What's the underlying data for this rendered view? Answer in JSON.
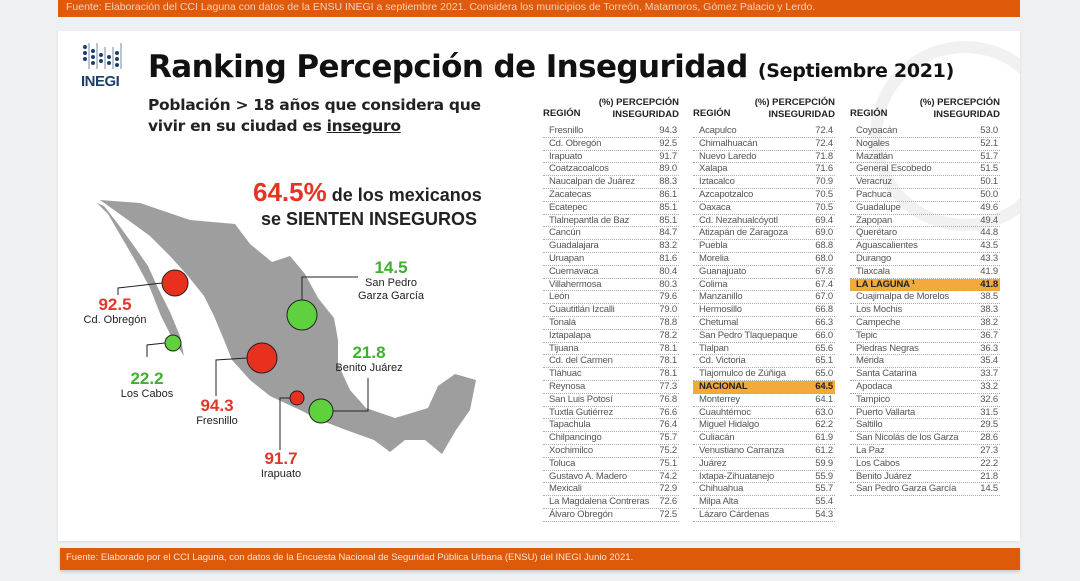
{
  "top_note": "Fuente: Elaboración del CCI Laguna con datos de la ENSU INEGI a septiembre 2021. Considera los municipios de Torreón, Matamoros, Gómez Palacio y Lerdo.",
  "logo": "INEGI",
  "title": "Ranking Percepción de Inseguridad",
  "title_sub": "(Septiembre 2021)",
  "subtitle_line1": "Población > 18 años que considera que",
  "subtitle_line2": "vivir en su ciudad es ",
  "subtitle_emph": "inseguro",
  "headline": {
    "pct": "64.5%",
    "text1": " de los mexicanos",
    "text2": "se SIENTEN INSEGUROS"
  },
  "colors": {
    "orange": "#e05a0c",
    "red": "#e0382a",
    "green": "#5fd13e",
    "highlight": "#f3a93c",
    "map": "#9e9e9e"
  },
  "map_markers": [
    {
      "value": "92.5",
      "city": "Cd. Obregón",
      "status": "red"
    },
    {
      "value": "22.2",
      "city": "Los Cabos",
      "status": "green"
    },
    {
      "value": "94.3",
      "city": "Fresnillo",
      "status": "red"
    },
    {
      "value": "91.7",
      "city": "Irapuato",
      "status": "red"
    },
    {
      "value": "21.8",
      "city": "Benito Juárez",
      "status": "green"
    },
    {
      "value": "14.5",
      "city": "San Pedro",
      "city2": "Garza García",
      "status": "green"
    }
  ],
  "table_headers": {
    "region": "REGIÓN",
    "pct1": "(%) PERCEPCIÓN",
    "pct2": "INSEGURIDAD"
  },
  "columns": [
    [
      [
        "Fresnillo",
        "94.3"
      ],
      [
        "Cd. Obregón",
        "92.5"
      ],
      [
        "Irapuato",
        "91.7"
      ],
      [
        "Coatzacoalcos",
        "89.0"
      ],
      [
        "Naucalpan de Juárez",
        "88.3"
      ],
      [
        "Zacatecas",
        "86.1"
      ],
      [
        "Ecatepec",
        "85.1"
      ],
      [
        "Tlalnepantla de Baz",
        "85.1"
      ],
      [
        "Cancún",
        "84.7"
      ],
      [
        "Guadalajara",
        "83.2"
      ],
      [
        "Uruapan",
        "81.6"
      ],
      [
        "Cuernavaca",
        "80.4"
      ],
      [
        "Villahermosa",
        "80.3"
      ],
      [
        "León",
        "79.6"
      ],
      [
        "Cuautitlán Izcalli",
        "79.0"
      ],
      [
        "Tonalá",
        "78.8"
      ],
      [
        "Iztapalapa",
        "78.2"
      ],
      [
        "Tijuana",
        "78.1"
      ],
      [
        "Cd. del Carmen",
        "78.1"
      ],
      [
        "Tláhuac",
        "78.1"
      ],
      [
        "Reynosa",
        "77.3"
      ],
      [
        "San Luis Potosí",
        "76.8"
      ],
      [
        "Tuxtla Gutiérrez",
        "76.6"
      ],
      [
        "Tapachula",
        "76.4"
      ],
      [
        "Chilpancingo",
        "75.7"
      ],
      [
        "Xochimilco",
        "75.2"
      ],
      [
        "Toluca",
        "75.1"
      ],
      [
        "Gustavo A. Madero",
        "74.2"
      ],
      [
        "Mexicali",
        "72.9"
      ],
      [
        "La Magdalena Contreras",
        "72.6"
      ],
      [
        "Álvaro Obregón",
        "72.5"
      ]
    ],
    [
      [
        "Acapulco",
        "72.4"
      ],
      [
        "Chimalhuacán",
        "72.4"
      ],
      [
        "Nuevo Laredo",
        "71.8"
      ],
      [
        "Xalapa",
        "71.6"
      ],
      [
        "Iztacalco",
        "70.9"
      ],
      [
        "Azcapotzalco",
        "70.5"
      ],
      [
        "Oaxaca",
        "70.5"
      ],
      [
        "Cd. Nezahualcóyotl",
        "69.4"
      ],
      [
        "Atizapán de Zaragoza",
        "69.0"
      ],
      [
        "Puebla",
        "68.8"
      ],
      [
        "Morelia",
        "68.0"
      ],
      [
        "Guanajuato",
        "67.8"
      ],
      [
        "Colima",
        "67.4"
      ],
      [
        "Manzanillo",
        "67.0"
      ],
      [
        "Hermosillo",
        "66.8"
      ],
      [
        "Chetumal",
        "66.3"
      ],
      [
        "San Pedro Tlaquepaque",
        "66.0"
      ],
      [
        "Tlalpan",
        "65.6"
      ],
      [
        "Cd. Victoria",
        "65.1"
      ],
      [
        "Tlajomulco de Zúñiga",
        "65.0"
      ],
      [
        "NACIONAL",
        "64.5",
        "hl"
      ],
      [
        "Monterrey",
        "64.1"
      ],
      [
        "Cuauhtémoc",
        "63.0"
      ],
      [
        "Miguel Hidalgo",
        "62.2"
      ],
      [
        "Culiacán",
        "61.9"
      ],
      [
        "Venustiano Carranza",
        "61.2"
      ],
      [
        "Juárez",
        "59.9"
      ],
      [
        "Ixtapa-Zihuatanejo",
        "55.9"
      ],
      [
        "Chihuahua",
        "55.7"
      ],
      [
        "Milpa Alta",
        "55.4"
      ],
      [
        "Lázaro Cárdenas",
        "54.3"
      ]
    ],
    [
      [
        "Coyoacán",
        "53.0"
      ],
      [
        "Nogales",
        "52.1"
      ],
      [
        "Mazatlán",
        "51.7"
      ],
      [
        "General Escobedo",
        "51.5"
      ],
      [
        "Veracruz",
        "50.1"
      ],
      [
        "Pachuca",
        "50.0"
      ],
      [
        "Guadalupe",
        "49.6"
      ],
      [
        "Zapopan",
        "49.4"
      ],
      [
        "Querétaro",
        "44.8"
      ],
      [
        "Aguascalientes",
        "43.5"
      ],
      [
        "Durango",
        "43.3"
      ],
      [
        "Tlaxcala",
        "41.9"
      ],
      [
        "LA LAGUNA ¹",
        "41.8",
        "hl"
      ],
      [
        "Cuajimalpa de Morelos",
        "38.5"
      ],
      [
        "Los Mochis",
        "38.3"
      ],
      [
        "Campeche",
        "38.2"
      ],
      [
        "Tepic",
        "36.7"
      ],
      [
        "Piedras Negras",
        "36.3"
      ],
      [
        "Mérida",
        "35.4"
      ],
      [
        "Santa Catarina",
        "33.7"
      ],
      [
        "Apodaca",
        "33.2"
      ],
      [
        "Tampico",
        "32.6"
      ],
      [
        "Puerto Vallarta",
        "31.5"
      ],
      [
        "Saltillo",
        "29.5"
      ],
      [
        "San Nicolás de los Garza",
        "28.6"
      ],
      [
        "La Paz",
        "27.3"
      ],
      [
        "Los Cabos",
        "22.2"
      ],
      [
        "Benito Juárez",
        "21.8"
      ],
      [
        "San Pedro Garza García",
        "14.5"
      ]
    ]
  ],
  "bottom_note": "Fuente: Elaborado por el CCI Laguna, con datos de la Encuesta Nacional de Seguridad Pública Urbana (ENSU) del INEGI Junio 2021."
}
